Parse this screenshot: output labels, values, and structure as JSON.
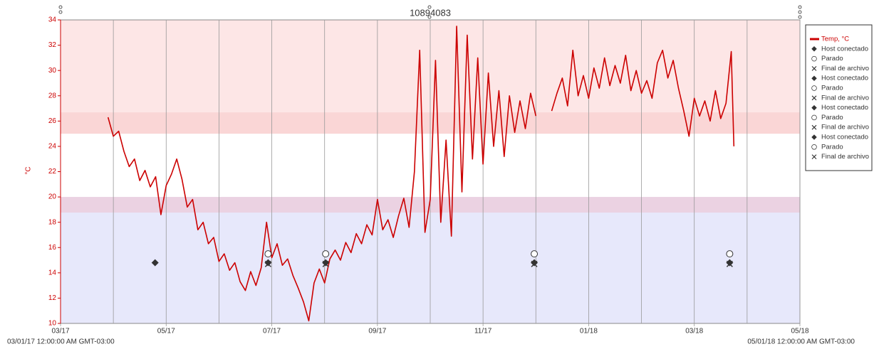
{
  "chart_data": {
    "type": "line",
    "title": "10894083",
    "ylabel": "°C",
    "start_label": "03/01/17 12:00:00 AM GMT-03:00",
    "end_label": "05/01/18 12:00:00 AM GMT-03:00",
    "xlim": [
      0,
      14
    ],
    "xticks": [
      {
        "value": 0,
        "label": "03/17"
      },
      {
        "value": 2,
        "label": "05/17"
      },
      {
        "value": 4,
        "label": "07/17"
      },
      {
        "value": 6,
        "label": "09/17"
      },
      {
        "value": 8,
        "label": "11/17"
      },
      {
        "value": 10,
        "label": "01/18"
      },
      {
        "value": 12,
        "label": "03/18"
      },
      {
        "value": 14,
        "label": "05/18"
      }
    ],
    "xminor": [
      1,
      3,
      5,
      7,
      9,
      11,
      13
    ],
    "ylim": [
      10,
      34
    ],
    "yticks": [
      10,
      12,
      14,
      16,
      18,
      20,
      22,
      24,
      26,
      28,
      30,
      32,
      34
    ],
    "bands": [
      {
        "from": 25,
        "to": 34,
        "color": "#fde6e6"
      },
      {
        "from": 10,
        "to": 20,
        "color": "#e7e8fb"
      }
    ],
    "series": [
      {
        "name": "Temp, °C",
        "color": "#cc0000",
        "x": [
          0.9,
          1.0,
          1.1,
          1.2,
          1.3,
          1.4,
          1.5,
          1.6,
          1.7,
          1.8,
          1.9,
          2.0,
          2.1,
          2.2,
          2.3,
          2.4,
          2.5,
          2.6,
          2.7,
          2.8,
          2.9,
          3.0,
          3.1,
          3.2,
          3.3,
          3.4,
          3.5,
          3.6,
          3.7,
          3.8,
          3.9,
          4.0,
          4.1,
          4.2,
          4.3,
          4.4,
          4.5,
          4.6,
          4.7,
          4.8,
          4.9,
          5.0,
          5.1,
          5.2,
          5.3,
          5.4,
          5.5,
          5.6,
          5.7,
          5.8,
          5.9,
          6.0,
          6.1,
          6.2,
          6.3,
          6.4,
          6.5,
          6.6,
          6.7,
          6.8,
          6.9,
          7.0,
          7.1,
          7.2,
          7.3,
          7.4,
          7.5,
          7.6,
          7.7,
          7.8,
          7.9,
          8.0,
          8.1,
          8.2,
          8.3,
          8.4,
          8.5,
          8.6,
          8.7,
          8.8,
          8.9,
          9.0,
          9.1,
          9.2,
          9.3,
          9.4,
          9.5,
          9.6,
          9.7,
          9.8,
          9.9,
          10.0,
          10.1,
          10.2,
          10.3,
          10.4,
          10.5,
          10.6,
          10.7,
          10.8,
          10.9,
          11.0,
          11.1,
          11.2,
          11.3,
          11.4,
          11.5,
          11.6,
          11.7,
          11.8,
          11.9,
          12.0,
          12.1,
          12.2,
          12.3,
          12.4,
          12.5,
          12.6,
          12.7,
          12.75
        ],
        "values": [
          26.3,
          24.8,
          25.2,
          23.6,
          22.4,
          23.0,
          21.3,
          22.1,
          20.8,
          21.6,
          18.6,
          20.9,
          21.8,
          23.0,
          21.4,
          19.2,
          19.8,
          17.4,
          18.0,
          16.3,
          16.8,
          14.9,
          15.5,
          14.2,
          14.8,
          13.3,
          12.6,
          14.1,
          13.0,
          14.4,
          18.0,
          15.2,
          16.3,
          14.6,
          15.1,
          13.8,
          12.8,
          11.7,
          10.2,
          13.2,
          14.3,
          13.2,
          15.1,
          15.8,
          15.0,
          16.4,
          15.6,
          17.1,
          16.3,
          17.8,
          17.0,
          19.8,
          17.4,
          18.2,
          16.8,
          18.5,
          19.9,
          17.6,
          22.0,
          31.6,
          17.2,
          19.8,
          30.8,
          18.0,
          24.5,
          16.9,
          33.5,
          20.4,
          32.8,
          23.0,
          31.0,
          22.6,
          29.8,
          24.0,
          28.4,
          23.2,
          28.0,
          25.1,
          27.6,
          25.4,
          28.2,
          26.4,
          null,
          null,
          26.8,
          28.2,
          29.4,
          27.2,
          31.6,
          28.0,
          29.6,
          27.8,
          30.2,
          28.6,
          31.0,
          28.8,
          30.4,
          29.0,
          31.2,
          28.4,
          30.0,
          28.2,
          29.2,
          27.8,
          30.6,
          31.6,
          29.4,
          30.8,
          28.6,
          26.8,
          24.8,
          27.8,
          26.4,
          27.6,
          26.0,
          28.4,
          26.2,
          27.4,
          31.5,
          24.0
        ]
      },
      {
        "name": "Host conectado",
        "marker": "diamond",
        "color": "#333333",
        "x": [
          1.79
        ],
        "values": [
          14.8
        ]
      },
      {
        "name": "Parado",
        "marker": "circle",
        "color": "#333333",
        "x": [
          3.93
        ],
        "values": [
          15.5
        ]
      },
      {
        "name": "Final de archivo",
        "marker": "cross",
        "color": "#333333",
        "x": [
          3.93
        ],
        "values": [
          14.7
        ]
      },
      {
        "name": "Host conectado",
        "marker": "diamond",
        "color": "#333333",
        "x": [
          3.93
        ],
        "values": [
          14.8
        ]
      },
      {
        "name": "Parado",
        "marker": "circle",
        "color": "#333333",
        "x": [
          5.02
        ],
        "values": [
          15.5
        ]
      },
      {
        "name": "Final de archivo",
        "marker": "cross",
        "color": "#333333",
        "x": [
          5.02
        ],
        "values": [
          14.7
        ]
      },
      {
        "name": "Host conectado",
        "marker": "diamond",
        "color": "#333333",
        "x": [
          5.02
        ],
        "values": [
          14.8
        ]
      },
      {
        "name": "Parado",
        "marker": "circle",
        "color": "#333333",
        "x": [
          8.97
        ],
        "values": [
          15.5
        ]
      },
      {
        "name": "Final de archivo",
        "marker": "cross",
        "color": "#333333",
        "x": [
          8.97
        ],
        "values": [
          14.7
        ]
      },
      {
        "name": "Host conectado",
        "marker": "diamond",
        "color": "#333333",
        "x": [
          8.97,
          12.67
        ],
        "values": [
          14.8,
          14.8
        ]
      },
      {
        "name": "Parado",
        "marker": "circle",
        "color": "#333333",
        "x": [
          12.67
        ],
        "values": [
          15.5
        ]
      },
      {
        "name": "Final de archivo",
        "marker": "cross",
        "color": "#333333",
        "x": [
          12.67
        ],
        "values": [
          14.7
        ]
      }
    ]
  }
}
